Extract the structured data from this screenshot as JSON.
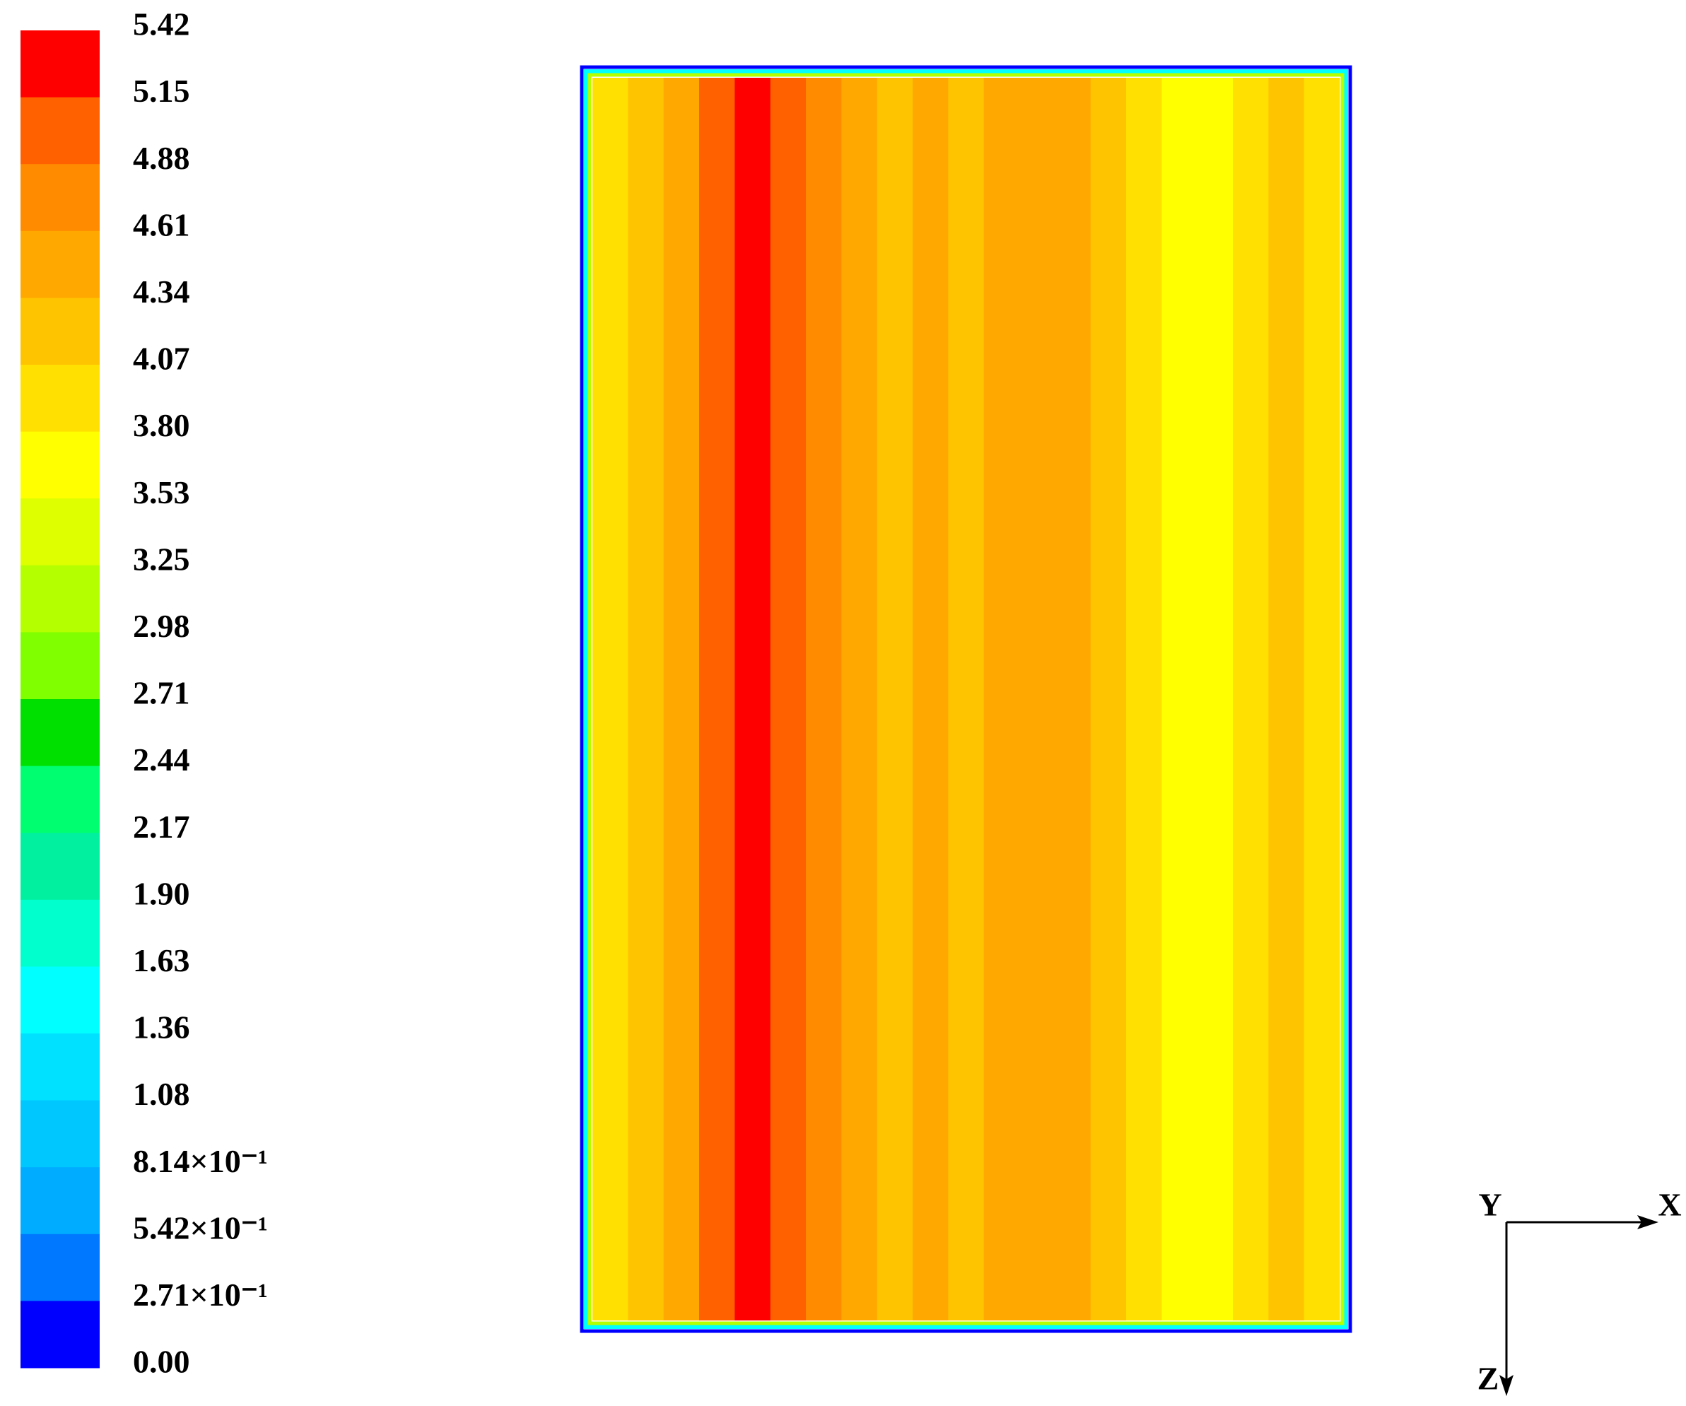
{
  "chart_data": {
    "type": "contour",
    "colorbar": {
      "levels": [
        5.42,
        5.15,
        4.88,
        4.61,
        4.34,
        4.07,
        {
          "value": 3.8,
          "label": "3.80"
        },
        3.53,
        3.25,
        2.98,
        2.71,
        2.44,
        2.17,
        {
          "value": 1.9,
          "label": "1.90"
        },
        1.63,
        1.36,
        1.08,
        {
          "value": 0.814,
          "label": "8.14×10⁻¹"
        },
        {
          "value": 0.542,
          "label": "5.42×10⁻¹"
        },
        {
          "value": 0.271,
          "label": "2.71×10⁻¹"
        },
        {
          "value": 0,
          "label": "0.00"
        }
      ],
      "colors": [
        "#ff0000",
        "#ff6000",
        "#ff8c00",
        "#ffa800",
        "#ffc400",
        "#ffe000",
        "#ffff00",
        "#ddff00",
        "#b4ff00",
        "#80ff00",
        "#00e000",
        "#00ff70",
        "#00f0a0",
        "#00ffcc",
        "#00ffff",
        "#00e0ff",
        "#00c8ff",
        "#00acff",
        "#0078ff",
        "#0000ff"
      ]
    },
    "field": {
      "values": [
        3.9,
        4.3,
        4.6,
        5.0,
        5.3,
        5.0,
        4.7,
        4.5,
        4.2,
        4.4,
        4.1,
        4.6,
        4.5,
        4.4,
        4.2,
        4.0,
        3.7,
        3.6,
        4.0,
        4.1,
        3.9
      ]
    },
    "axes": [
      "Y",
      "X",
      "Z"
    ]
  }
}
